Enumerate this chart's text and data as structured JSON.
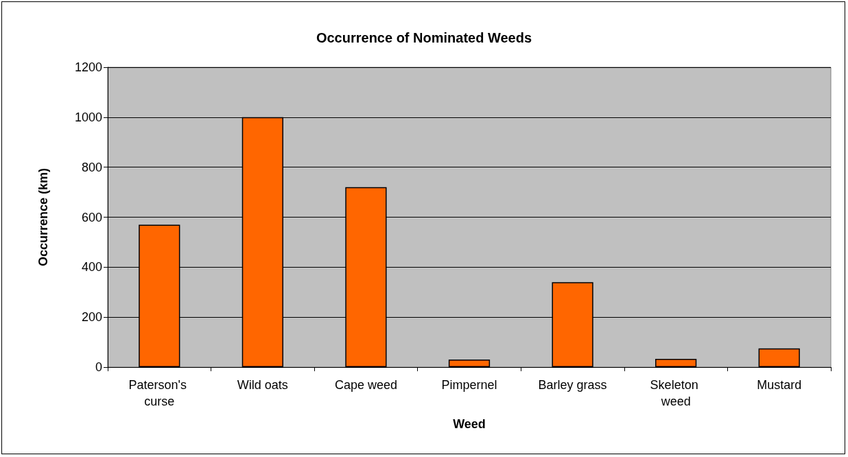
{
  "chart_data": {
    "type": "bar",
    "title": "Occurrence of Nominated Weeds",
    "xlabel": "Weed",
    "ylabel": "Occurrence (km)",
    "categories": [
      "Paterson's curse",
      "Wild oats",
      "Cape weed",
      "Pimpernel",
      "Barley grass",
      "Skeleton weed",
      "Mustard"
    ],
    "values": [
      570,
      1000,
      720,
      30,
      340,
      33,
      75
    ],
    "color": "#ff6600",
    "ylim": [
      0,
      1200
    ],
    "yticks": [
      0,
      200,
      400,
      600,
      800,
      1000,
      1200
    ],
    "grid": "y"
  }
}
